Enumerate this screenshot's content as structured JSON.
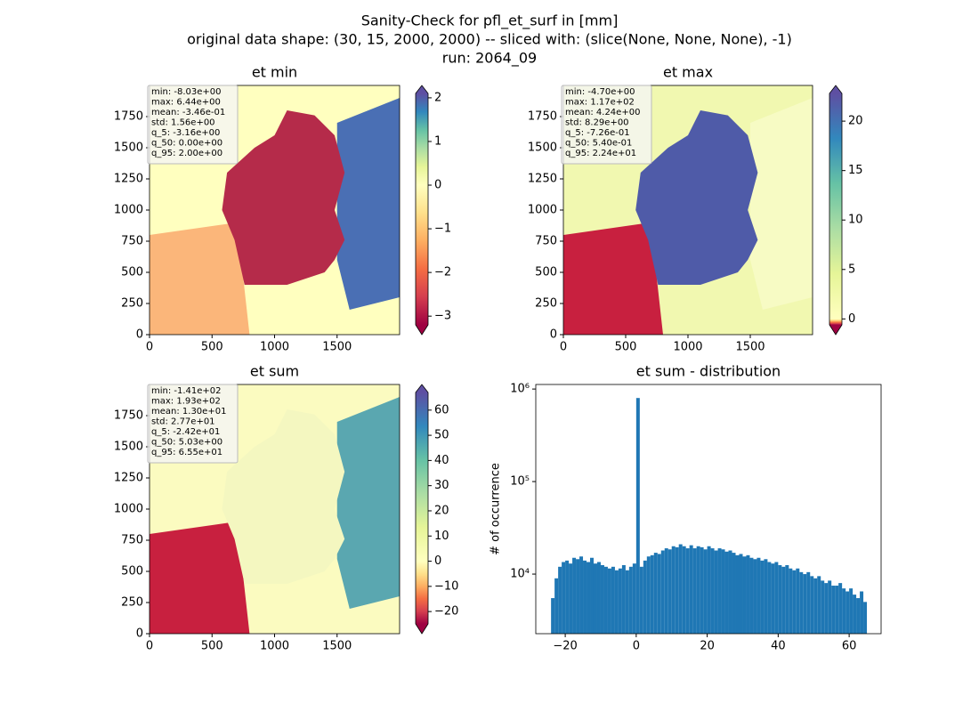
{
  "suptitle": [
    "Sanity-Check for pfl_et_surf in [mm]",
    "original data shape: (30, 15, 2000, 2000) -- sliced with: (slice(None, None, None), -1)",
    "run: 2064_09"
  ],
  "chart_data": [
    {
      "type": "image",
      "title": "et min",
      "xlim": [
        0,
        2000
      ],
      "ylim": [
        0,
        2000
      ],
      "xticks": [
        0,
        500,
        1000,
        1500
      ],
      "yticks": [
        0,
        250,
        500,
        750,
        1000,
        1250,
        1500,
        1750
      ],
      "colorbar": {
        "lim": [
          -3.2,
          2.1
        ],
        "ticks": [
          {
            "value": -3,
            "label": "−3"
          },
          {
            "value": -2,
            "label": "−2"
          },
          {
            "value": -1,
            "label": "−1"
          },
          0,
          1,
          2
        ],
        "extend": "both"
      },
      "colormap": [
        "#9e0142",
        "#d53e4f",
        "#f46d43",
        "#fdae61",
        "#fee08b",
        "#ffffbf",
        "#e6f598",
        "#abdda4",
        "#66c2a5",
        "#3288bd",
        "#5e4fa2"
      ],
      "stats": [
        "min: -8.03e+00",
        "max: 6.44e+00",
        "mean: -3.46e-01",
        "std: 1.56e+00",
        "q_5: -3.16e+00",
        "q_50: 0.00e+00",
        "q_95: 2.00e+00"
      ]
    },
    {
      "type": "image",
      "title": "et max",
      "xlim": [
        0,
        2000
      ],
      "ylim": [
        0,
        2000
      ],
      "xticks": [
        0,
        500,
        1000,
        1500
      ],
      "yticks": [
        0,
        250,
        500,
        750,
        1000,
        1250,
        1500,
        1750
      ],
      "colorbar": {
        "lim": [
          -0.6,
          22.8
        ],
        "ticks": [
          0,
          5,
          10,
          15,
          20
        ],
        "extend": "both"
      },
      "colormap": [
        "#9e0142",
        "#d53e4f",
        "#f46d43",
        "#fdae61",
        "#fee08b",
        "#ffffbf",
        "#e6f598",
        "#abdda4",
        "#66c2a5",
        "#3288bd",
        "#5e4fa2"
      ],
      "stats": [
        "min: -4.70e+00",
        "max: 1.17e+02",
        "mean: 4.24e+00",
        "std: 8.29e+00",
        "q_5: -7.26e-01",
        "q_50: 5.40e-01",
        "q_95: 2.24e+01"
      ]
    },
    {
      "type": "image",
      "title": "et sum",
      "xlim": [
        0,
        2000
      ],
      "ylim": [
        0,
        2000
      ],
      "xticks": [
        0,
        500,
        1000,
        1500
      ],
      "yticks": [
        0,
        250,
        500,
        750,
        1000,
        1250,
        1500,
        1750
      ],
      "colorbar": {
        "lim": [
          -24.9,
          67
        ],
        "ticks": [
          {
            "value": -20,
            "label": "−20"
          },
          {
            "value": -10,
            "label": "−10"
          },
          0,
          10,
          20,
          30,
          40,
          50,
          60
        ],
        "extend": "both"
      },
      "colormap": [
        "#9e0142",
        "#d53e4f",
        "#f46d43",
        "#fdae61",
        "#fee08b",
        "#ffffbf",
        "#e6f598",
        "#abdda4",
        "#66c2a5",
        "#3288bd",
        "#5e4fa2"
      ],
      "stats": [
        "min: -1.41e+02",
        "max: 1.93e+02",
        "mean: 1.30e+01",
        "std: 2.77e+01",
        "q_5: -2.42e+01",
        "q_50: 5.03e+00",
        "q_95: 6.55e+01"
      ]
    },
    {
      "type": "histogram",
      "title": "et sum - distribution",
      "ylabel": "# of occurrence",
      "color": "#1f77b4",
      "yscale": "log",
      "xlim": [
        -28.3,
        69
      ],
      "ylim": [
        2270,
        1120000
      ],
      "xticks": [
        {
          "value": -20,
          "label": "−20"
        },
        0,
        20,
        40,
        60
      ],
      "yticks": [
        {
          "value": 10000,
          "label": "10⁴"
        },
        {
          "value": 100000,
          "label": "10⁵"
        },
        {
          "value": 1000000,
          "label": "10⁶"
        }
      ],
      "bins": [
        -24,
        -23,
        -22,
        -21,
        -20,
        -19,
        -18,
        -17,
        -16,
        -15,
        -14,
        -13,
        -12,
        -11,
        -10,
        -9,
        -8,
        -7,
        -6,
        -5,
        -4,
        -3,
        -2,
        -1,
        0,
        1,
        2,
        3,
        4,
        5,
        6,
        7,
        8,
        9,
        10,
        11,
        12,
        13,
        14,
        15,
        16,
        17,
        18,
        19,
        20,
        21,
        22,
        23,
        24,
        25,
        26,
        27,
        28,
        29,
        30,
        31,
        32,
        33,
        34,
        35,
        36,
        37,
        38,
        39,
        40,
        41,
        42,
        43,
        44,
        45,
        46,
        47,
        48,
        49,
        50,
        51,
        52,
        53,
        54,
        55,
        56,
        57,
        58,
        59,
        60,
        61,
        62,
        63,
        64,
        65
      ],
      "counts": [
        5500,
        9000,
        12000,
        13500,
        14000,
        13000,
        15000,
        14500,
        15500,
        14000,
        13500,
        15000,
        13000,
        13500,
        12500,
        12000,
        11500,
        12000,
        11000,
        11500,
        12500,
        11000,
        12000,
        13000,
        800000,
        12000,
        14000,
        15500,
        16000,
        17000,
        16500,
        18000,
        19000,
        18500,
        20000,
        19500,
        21000,
        20000,
        19000,
        20500,
        19000,
        20000,
        19500,
        18500,
        20000,
        19000,
        18000,
        19000,
        18500,
        17500,
        18000,
        17000,
        16000,
        16500,
        15500,
        16000,
        15000,
        14500,
        15000,
        14000,
        14500,
        13500,
        13000,
        13500,
        12500,
        12000,
        12500,
        11500,
        11000,
        11500,
        10500,
        10000,
        10500,
        9500,
        9000,
        9500,
        8500,
        8000,
        8500,
        7500,
        7500,
        8000,
        7000,
        6500,
        7000,
        6000,
        5500,
        6500,
        5000
      ]
    }
  ]
}
